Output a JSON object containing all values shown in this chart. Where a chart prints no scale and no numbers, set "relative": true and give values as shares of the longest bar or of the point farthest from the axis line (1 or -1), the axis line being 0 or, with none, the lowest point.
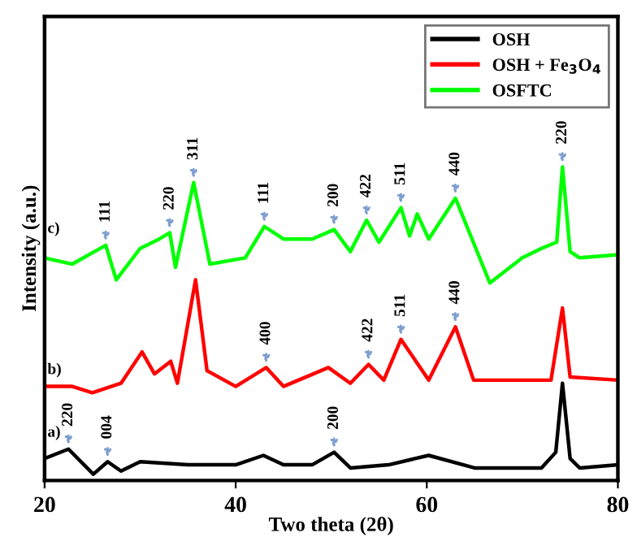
{
  "chart_data": {
    "type": "line",
    "xlabel": "Two theta (2θ)",
    "ylabel": "Intensity (a.u.)",
    "relative": true,
    "xlim": [
      20,
      80
    ],
    "xticks": [
      20,
      40,
      60,
      80
    ],
    "tick_labels": "x",
    "grid": false,
    "legend": "top right",
    "marker": "none",
    "line_style": "solid",
    "series": [
      {
        "name": "OSH",
        "color": "#000000",
        "x": [
          20,
          22.5,
          25.1,
          26.6,
          28,
          30,
          35,
          40,
          42.9,
          45,
          48,
          50.3,
          52,
          56,
          60.2,
          65,
          72,
          73.5,
          74.2,
          75,
          76,
          80
        ],
        "values": [
          0.07,
          0.1,
          0.02,
          0.06,
          0.03,
          0.06,
          0.05,
          0.05,
          0.08,
          0.05,
          0.05,
          0.09,
          0.04,
          0.05,
          0.08,
          0.04,
          0.04,
          0.09,
          0.31,
          0.07,
          0.04,
          0.05
        ]
      },
      {
        "name": "OSH + Fe$_{3}$O$_{4}$",
        "color": "#ff0000",
        "x": [
          20,
          22.9,
          25,
          28,
          30.2,
          31.5,
          33.2,
          33.9,
          35.8,
          37,
          40,
          43.2,
          45,
          49.7,
          52,
          53.9,
          55.5,
          57.3,
          60.2,
          63,
          64.9,
          73,
          74.2,
          75,
          80
        ],
        "values": [
          0.3,
          0.3,
          0.28,
          0.31,
          0.41,
          0.34,
          0.38,
          0.31,
          0.64,
          0.35,
          0.3,
          0.36,
          0.3,
          0.36,
          0.31,
          0.37,
          0.32,
          0.45,
          0.32,
          0.49,
          0.32,
          0.32,
          0.55,
          0.33,
          0.32
        ]
      },
      {
        "name": "OSFTC",
        "color": "#00ff00",
        "x": [
          20,
          22.9,
          26.4,
          27.5,
          30,
          32,
          33.1,
          33.7,
          35.6,
          37.3,
          41,
          43,
          45,
          48,
          50.3,
          52,
          53.7,
          55,
          57.3,
          58.2,
          59,
          60.2,
          63,
          66.6,
          70,
          72,
          73.6,
          74.2,
          75,
          76,
          80
        ],
        "values": [
          0.71,
          0.69,
          0.75,
          0.64,
          0.74,
          0.77,
          0.79,
          0.68,
          0.95,
          0.69,
          0.71,
          0.81,
          0.77,
          0.77,
          0.8,
          0.73,
          0.83,
          0.76,
          0.87,
          0.78,
          0.85,
          0.77,
          0.9,
          0.63,
          0.71,
          0.74,
          0.76,
          1.0,
          0.73,
          0.71,
          0.72
        ]
      }
    ],
    "annotations": [
      "a)",
      "b)",
      "c)",
      {
        "text": "220",
        "x": 22.5,
        "y": 0.1
      },
      {
        "text": "004",
        "x": 26.6,
        "y": 0.06
      },
      {
        "text": "200",
        "x": 50.3,
        "y": 0.09
      },
      {
        "text": "400",
        "x": 43.2,
        "y": 0.36
      },
      {
        "text": "422",
        "x": 53.9,
        "y": 0.37
      },
      {
        "text": "511",
        "x": 57.3,
        "y": 0.45
      },
      {
        "text": "440",
        "x": 63,
        "y": 0.49
      },
      {
        "text": "111",
        "x": 26.4,
        "y": 0.75
      },
      {
        "text": "220",
        "x": 33.1,
        "y": 0.79
      },
      {
        "text": "311",
        "x": 35.6,
        "y": 0.95
      },
      {
        "text": "111",
        "x": 43,
        "y": 0.81
      },
      {
        "text": "200",
        "x": 50.3,
        "y": 0.8
      },
      {
        "text": "422",
        "x": 53.7,
        "y": 0.83
      },
      {
        "text": "511",
        "x": 57.3,
        "y": 0.87
      },
      {
        "text": "440",
        "x": 63,
        "y": 0.9
      },
      {
        "text": "220",
        "x": 74.2,
        "y": 1.0
      }
    ]
  }
}
